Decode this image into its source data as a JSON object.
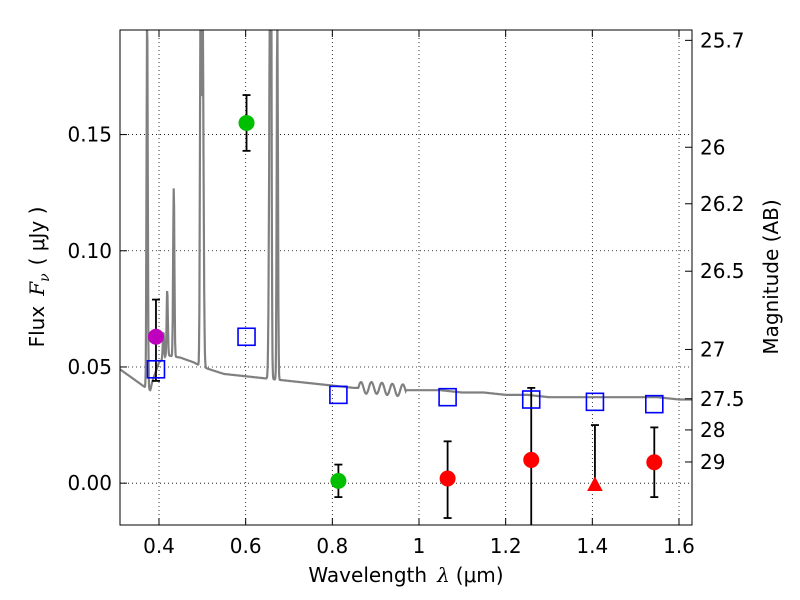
{
  "chart_data": {
    "type": "scatter",
    "xlabel_prefix": "Wavelength",
    "xlabel_symbol": "λ",
    "xlabel_unit": "(μm)",
    "ylabel_prefix": "Flux",
    "ylabel_symbol": "F",
    "ylabel_subscript": "ν",
    "ylabel_unit": "( μJy )",
    "y2label": "Magnitude (AB)",
    "xlim": [
      0.31,
      1.63
    ],
    "ylim": [
      -0.018,
      0.195
    ],
    "grid": true,
    "x_ticks": [
      {
        "value": 0.4,
        "label": "0.4"
      },
      {
        "value": 0.6,
        "label": "0.6"
      },
      {
        "value": 0.8,
        "label": "0.8"
      },
      {
        "value": 1.0,
        "label": "1"
      },
      {
        "value": 1.2,
        "label": "1.2"
      },
      {
        "value": 1.4,
        "label": "1.4"
      },
      {
        "value": 1.6,
        "label": "1.6"
      }
    ],
    "y_ticks": [
      {
        "value": 0.0,
        "label": "0.00"
      },
      {
        "value": 0.05,
        "label": "0.05"
      },
      {
        "value": 0.1,
        "label": "0.10"
      },
      {
        "value": 0.15,
        "label": "0.15"
      }
    ],
    "mag_ticks": [
      {
        "mag": 25.7,
        "label": "25.7"
      },
      {
        "mag": 26.0,
        "label": "26"
      },
      {
        "mag": 26.2,
        "label": "26.2"
      },
      {
        "mag": 26.5,
        "label": "26.5"
      },
      {
        "mag": 27.0,
        "label": "27"
      },
      {
        "mag": 27.5,
        "label": "27.5"
      },
      {
        "mag": 28.0,
        "label": "28"
      },
      {
        "mag": 29.0,
        "label": "29"
      }
    ],
    "photometry": [
      {
        "x": 0.393,
        "y": 0.063,
        "err_lo": 0.044,
        "err_hi": 0.079,
        "color": "#bf00bf",
        "marker": "circle"
      },
      {
        "x": 0.602,
        "y": 0.155,
        "err_lo": 0.143,
        "err_hi": 0.167,
        "color": "#00bf00",
        "marker": "circle"
      },
      {
        "x": 0.814,
        "y": 0.001,
        "err_lo": -0.006,
        "err_hi": 0.008,
        "color": "#00bf00",
        "marker": "circle"
      },
      {
        "x": 1.066,
        "y": 0.002,
        "err_lo": -0.015,
        "err_hi": 0.018,
        "color": "#ff0000",
        "marker": "circle"
      },
      {
        "x": 1.259,
        "y": 0.01,
        "err_lo": -0.018,
        "err_hi": 0.041,
        "color": "#ff0000",
        "marker": "circle"
      },
      {
        "x": 1.406,
        "y": -0.001,
        "err_lo": -0.001,
        "err_hi": 0.025,
        "color": "#ff0000",
        "marker": "triangle"
      },
      {
        "x": 1.543,
        "y": 0.009,
        "err_lo": -0.006,
        "err_hi": 0.024,
        "color": "#ff0000",
        "marker": "circle"
      }
    ],
    "model_points": [
      {
        "x": 0.393,
        "y": 0.049
      },
      {
        "x": 0.602,
        "y": 0.063
      },
      {
        "x": 0.814,
        "y": 0.038
      },
      {
        "x": 1.066,
        "y": 0.037
      },
      {
        "x": 1.259,
        "y": 0.036
      },
      {
        "x": 1.406,
        "y": 0.035
      },
      {
        "x": 1.543,
        "y": 0.034
      }
    ],
    "template_spectrum": {
      "continuum": [
        [
          0.31,
          0.049
        ],
        [
          0.34,
          0.045
        ],
        [
          0.37,
          0.041
        ],
        [
          0.38,
          0.04
        ],
        [
          0.385,
          0.044
        ],
        [
          0.4,
          0.052
        ],
        [
          0.42,
          0.055
        ],
        [
          0.45,
          0.054
        ],
        [
          0.48,
          0.052
        ],
        [
          0.5,
          0.05
        ],
        [
          0.55,
          0.047
        ],
        [
          0.6,
          0.046
        ],
        [
          0.65,
          0.045
        ],
        [
          0.7,
          0.044
        ],
        [
          0.75,
          0.043
        ],
        [
          0.8,
          0.042
        ],
        [
          0.85,
          0.041
        ],
        [
          0.9,
          0.041
        ],
        [
          0.95,
          0.04
        ],
        [
          1.0,
          0.04
        ],
        [
          1.05,
          0.04
        ],
        [
          1.1,
          0.039
        ],
        [
          1.15,
          0.039
        ],
        [
          1.2,
          0.038
        ],
        [
          1.25,
          0.038
        ],
        [
          1.3,
          0.037
        ],
        [
          1.35,
          0.037
        ],
        [
          1.4,
          0.037
        ],
        [
          1.45,
          0.037
        ],
        [
          1.5,
          0.037
        ],
        [
          1.55,
          0.037
        ],
        [
          1.6,
          0.036
        ],
        [
          1.63,
          0.036
        ]
      ],
      "lines": [
        {
          "x": 0.3727,
          "peak": 0.2,
          "width": 0.002
        },
        {
          "x": 0.4102,
          "peak": 0.065,
          "width": 0.002
        },
        {
          "x": 0.419,
          "peak": 0.083,
          "width": 0.002
        },
        {
          "x": 0.4341,
          "peak": 0.127,
          "width": 0.002
        },
        {
          "x": 0.4959,
          "peak": 0.2,
          "width": 0.002
        },
        {
          "x": 0.5007,
          "peak": 0.2,
          "width": 0.003
        },
        {
          "x": 0.6563,
          "peak": 0.2,
          "width": 0.003
        },
        {
          "x": 0.6583,
          "peak": 0.2,
          "width": 0.002
        },
        {
          "x": 0.6731,
          "peak": 0.2,
          "width": 0.002
        }
      ],
      "ripple": [
        0.86,
        0.97
      ]
    }
  }
}
